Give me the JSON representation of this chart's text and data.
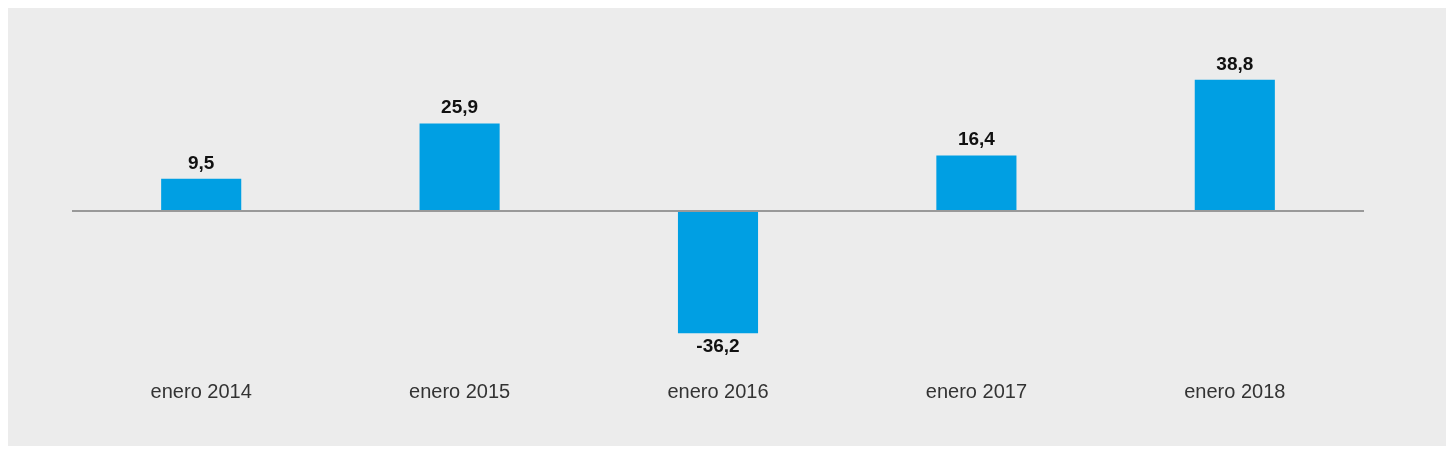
{
  "chart_data": {
    "type": "bar",
    "categories": [
      "enero 2014",
      "enero 2015",
      "enero 2016",
      "enero 2017",
      "enero 2018"
    ],
    "values": [
      9.5,
      25.9,
      -36.2,
      16.4,
      38.8
    ],
    "value_labels": [
      "9,5",
      "25,9",
      "-36,2",
      "16,4",
      "38,8"
    ],
    "color": "#009fe3",
    "grid": false,
    "legend": false
  }
}
